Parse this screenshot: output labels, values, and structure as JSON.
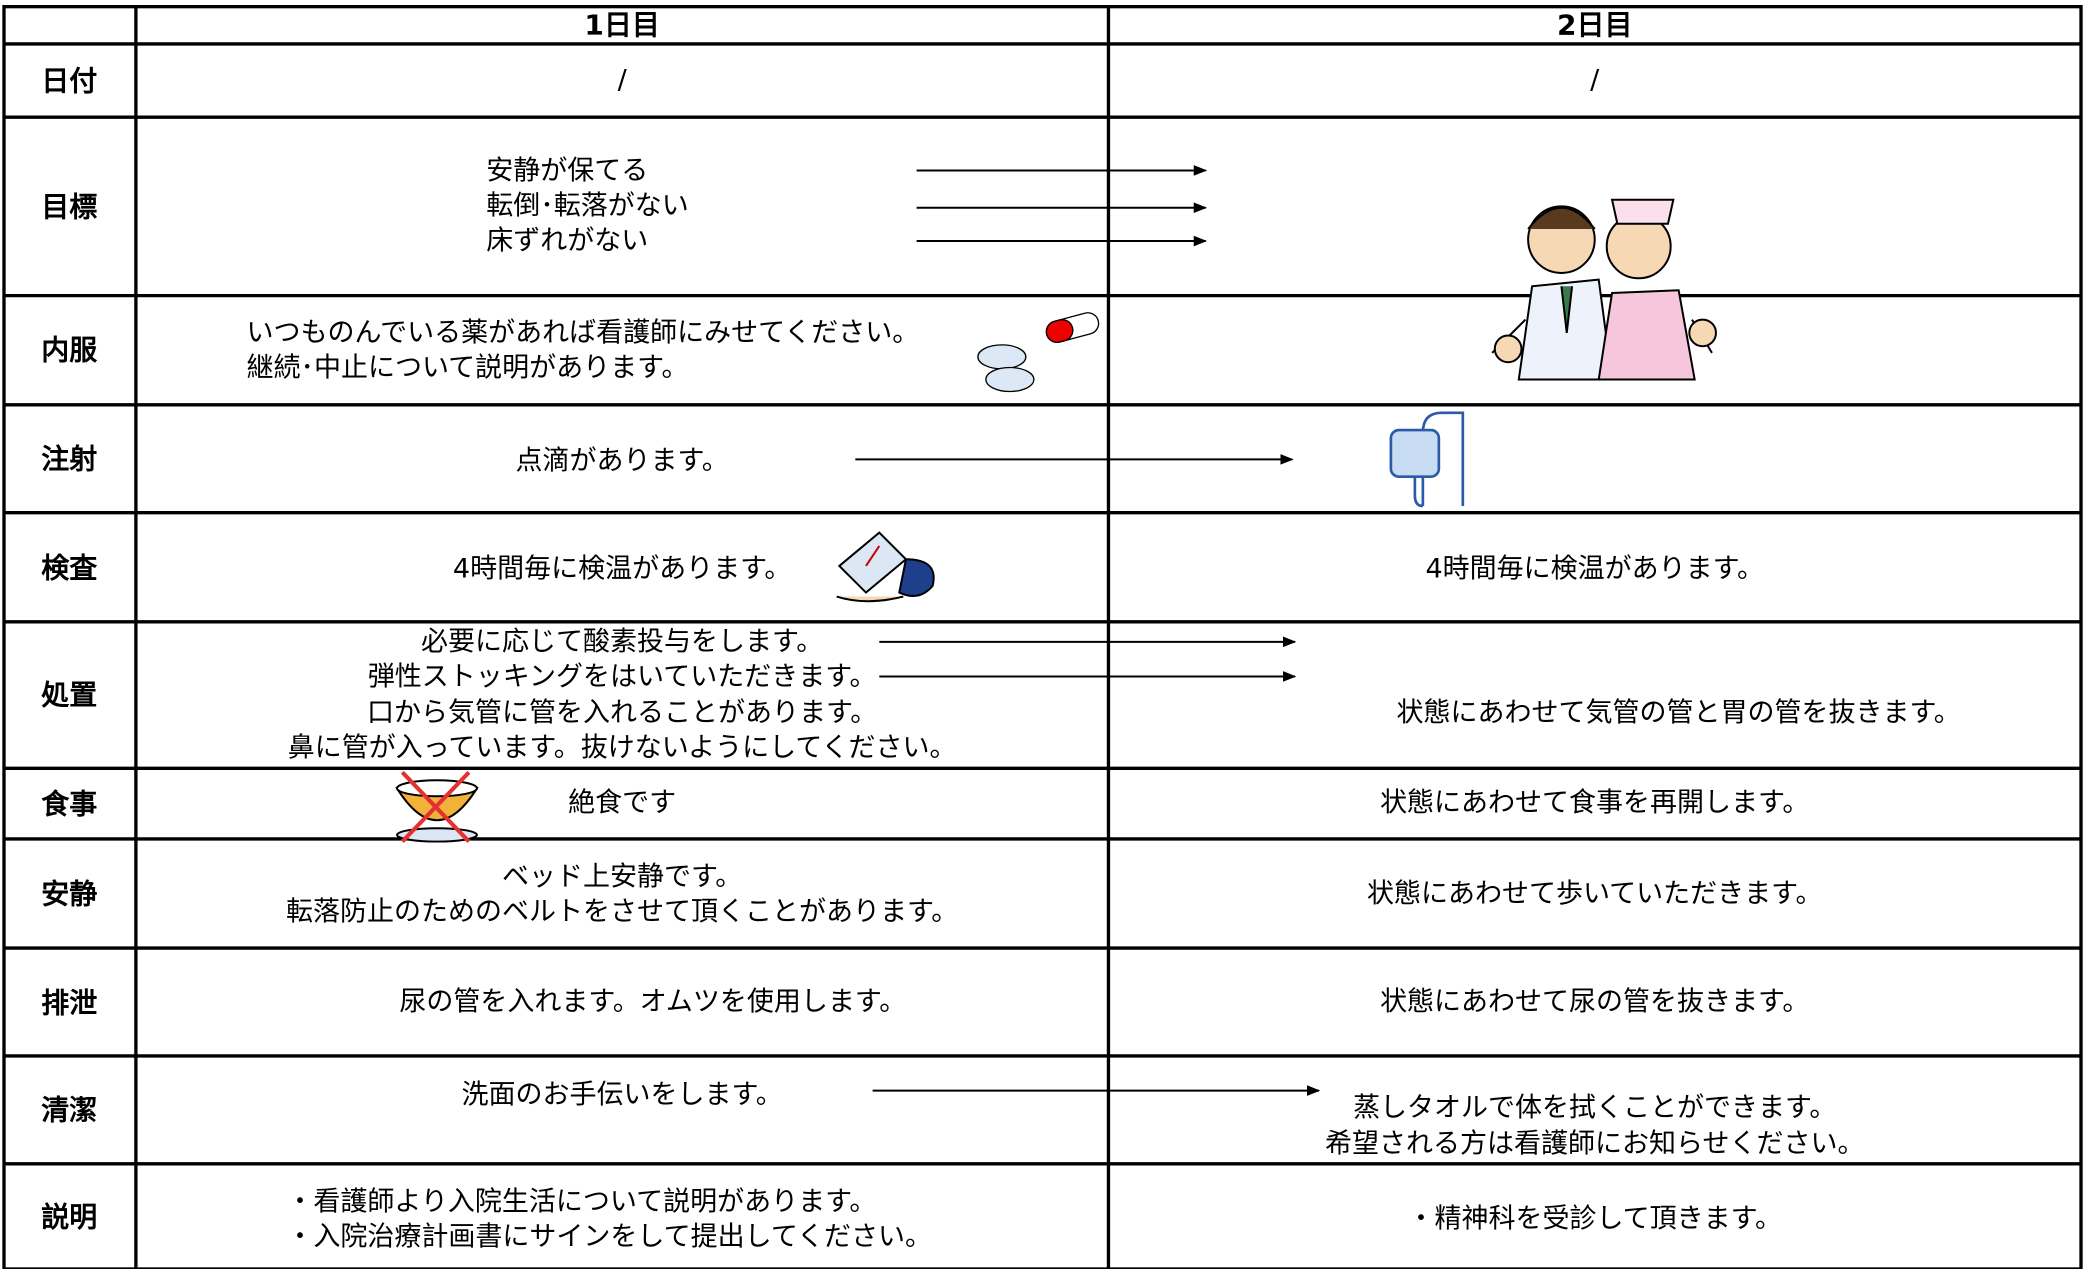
{
  "header": {
    "columns": [
      "1日目",
      "2日目"
    ]
  },
  "rows": [
    {
      "label": "日付",
      "day1": [
        "/"
      ],
      "day2": [
        "/"
      ]
    },
    {
      "label": "目標",
      "day1": [
        "安静が保てる",
        "転倒･転落がない",
        "床ずれがない"
      ]
    },
    {
      "label": "内服",
      "day1": [
        "いつものんでいる薬があれば看護師にみせてください。",
        "継続･中止について説明があります。"
      ]
    },
    {
      "label": "注射",
      "day1": [
        "点滴があります。"
      ]
    },
    {
      "label": "検査",
      "day1": [
        "4時間毎に検温があります。"
      ],
      "day2": [
        "4時間毎に検温があります。"
      ]
    },
    {
      "label": "処置",
      "day1": [
        "必要に応じて酸素投与をします。",
        "弾性ストッキングをはいていただきます。",
        "口から気管に管を入れることがあります。",
        "鼻に管が入っています。抜けないようにしてください。"
      ],
      "day2": [
        "状態にあわせて気管の管と胃の管を抜きます。"
      ]
    },
    {
      "label": "食事",
      "day1": [
        "絶食です"
      ],
      "day2": [
        "状態にあわせて食事を再開します。"
      ]
    },
    {
      "label": "安静",
      "day1": [
        "ベッド上安静です。",
        "転落防止のためのベルトをさせて頂くことがあります。"
      ],
      "day2": [
        "状態にあわせて歩いていただきます。"
      ]
    },
    {
      "label": "排泄",
      "day1": [
        "尿の管を入れます。オムツを使用します。"
      ],
      "day2": [
        "状態にあわせて尿の管を抜きます。"
      ]
    },
    {
      "label": "清潔",
      "day1": [
        "洗面のお手伝いをします。"
      ],
      "day2": [
        "蒸しタオルで体を拭くことができます。",
        "希望される方は看護師にお知らせください。"
      ]
    },
    {
      "label": "説明",
      "day1": [
        "・看護師より入院生活について説明があります。",
        "・入院治療計画書にサインをして提出してください。"
      ],
      "day2": [
        "・精神科を受診して頂きます。"
      ]
    }
  ]
}
